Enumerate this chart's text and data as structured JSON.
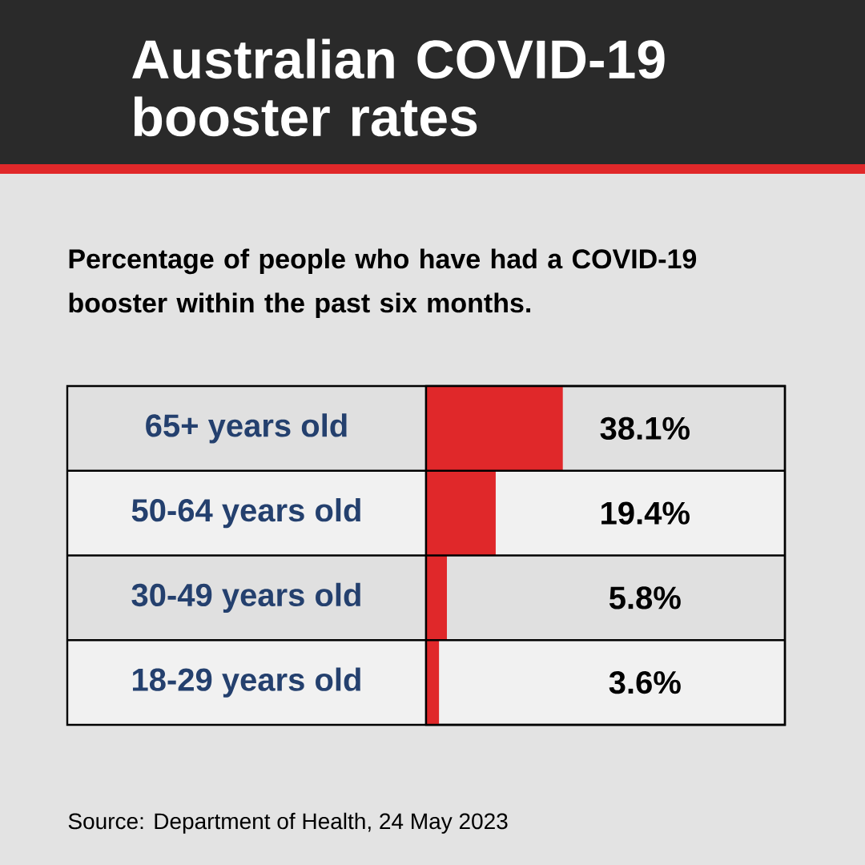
{
  "chart_data": {
    "type": "bar",
    "orientation": "horizontal",
    "title": "Australian COVID-19 booster rates",
    "subtitle": "Percentage of people who have had a COVID-19 booster within the past six months.",
    "categories": [
      "65+ years old",
      "50-64 years old",
      "30-49 years old",
      "18-29 years old"
    ],
    "values": [
      38.1,
      19.4,
      5.8,
      3.6
    ],
    "value_labels": [
      "38.1%",
      "19.4%",
      "5.8%",
      "3.6%"
    ],
    "color": "#e0282a",
    "xlim": [
      0,
      100
    ],
    "tick_labels": false,
    "annotations": [
      "Source: Department of Health, 24 May 2023"
    ]
  }
}
